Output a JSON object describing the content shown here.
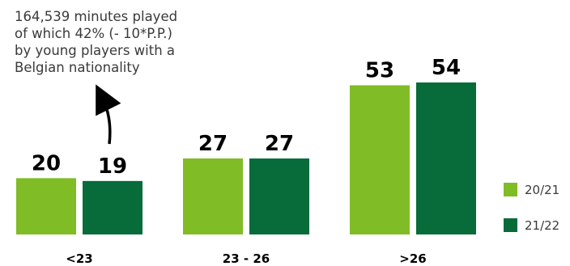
{
  "chart_data": {
    "type": "bar",
    "categories": [
      "<23",
      "23 - 26",
      ">26"
    ],
    "series": [
      {
        "name": "20/21",
        "values": [
          20,
          27,
          53
        ],
        "color": "#80bc25"
      },
      {
        "name": "21/22",
        "values": [
          19,
          27,
          54
        ],
        "color": "#076b3a"
      }
    ],
    "ylim": [
      0,
      54
    ],
    "grid": false,
    "legend": "bottom-right",
    "value_labels": true,
    "annotation": {
      "text": "164,539 minutes played\nof which 42% (- 10*P.P.)\nby young  players with a\nBelgian nationality",
      "points_to": "<23"
    }
  }
}
